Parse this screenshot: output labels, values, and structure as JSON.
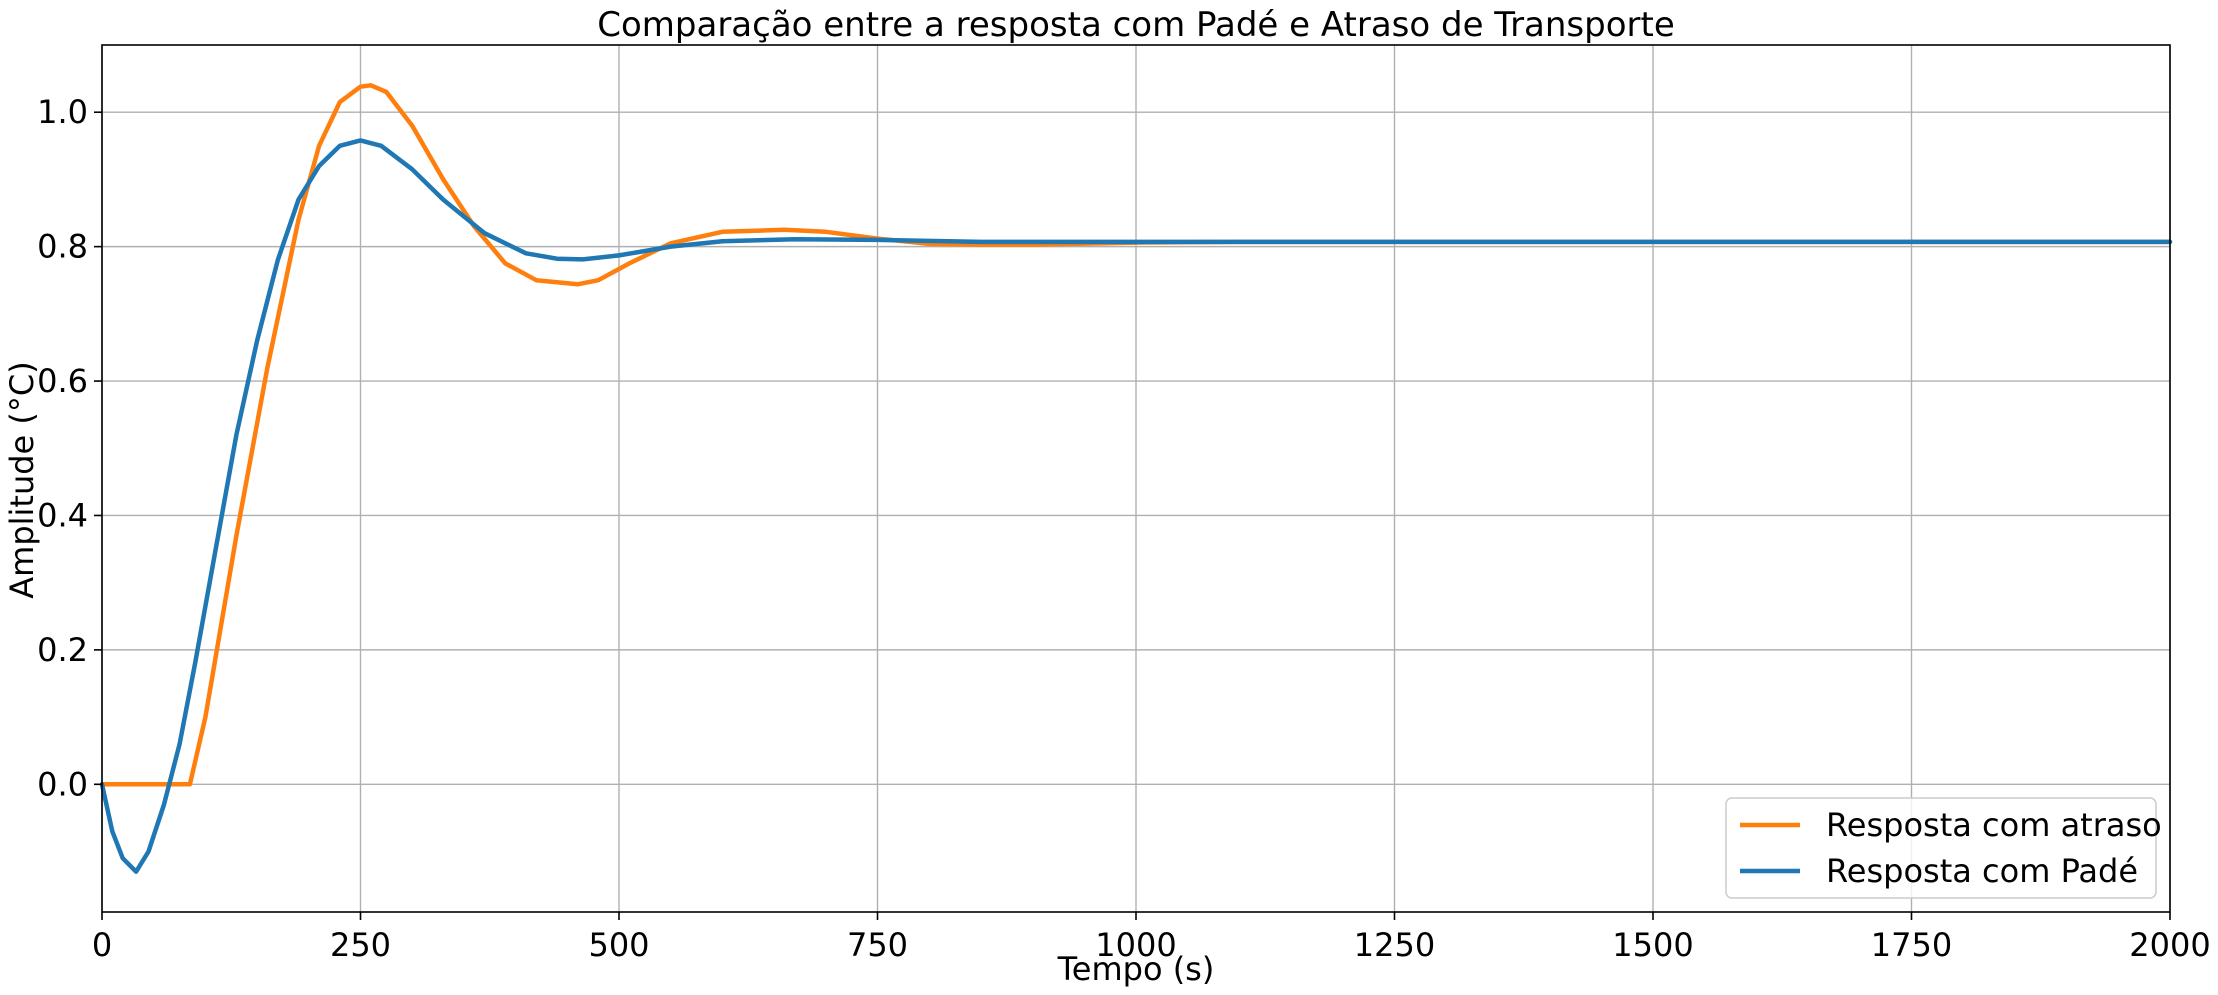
{
  "chart_data": {
    "type": "line",
    "title": "Comparação entre a resposta com Padé e Atraso de Transporte",
    "xlabel": "Tempo (s)",
    "ylabel": "Amplitude (°C)",
    "xlim": [
      0,
      2000
    ],
    "ylim": [
      -0.19,
      1.1
    ],
    "xticks": [
      0,
      250,
      500,
      750,
      1000,
      1250,
      1500,
      1750,
      2000
    ],
    "xtick_labels": [
      "0",
      "250",
      "500",
      "750",
      "1000",
      "1250",
      "1500",
      "1750",
      "2000"
    ],
    "yticks": [
      0.0,
      0.2,
      0.4,
      0.6,
      0.8,
      1.0
    ],
    "ytick_labels": [
      "0.0",
      "0.2",
      "0.4",
      "0.6",
      "0.8",
      "1.0"
    ],
    "grid": true,
    "legend_position": "bottom-right",
    "series": [
      {
        "name": "Resposta com atraso",
        "color": "#ff7f0e",
        "x": [
          0,
          85,
          100,
          130,
          160,
          190,
          210,
          230,
          250,
          260,
          275,
          300,
          330,
          360,
          390,
          420,
          460,
          480,
          510,
          550,
          600,
          660,
          700,
          750,
          800,
          850,
          900,
          1000,
          1100,
          1500,
          2000
        ],
        "y": [
          0.0,
          0.0,
          0.1,
          0.37,
          0.62,
          0.84,
          0.95,
          1.015,
          1.038,
          1.04,
          1.03,
          0.98,
          0.9,
          0.83,
          0.775,
          0.75,
          0.744,
          0.75,
          0.775,
          0.805,
          0.822,
          0.825,
          0.822,
          0.812,
          0.804,
          0.803,
          0.803,
          0.806,
          0.807,
          0.807,
          0.807
        ]
      },
      {
        "name": "Resposta com Padé",
        "color": "#1f77b4",
        "x": [
          0,
          10,
          20,
          33,
          45,
          60,
          75,
          90,
          110,
          130,
          150,
          170,
          190,
          210,
          230,
          250,
          270,
          300,
          330,
          370,
          410,
          440,
          465,
          500,
          550,
          600,
          670,
          750,
          850,
          1000,
          1500,
          2000
        ],
        "y": [
          0.0,
          -0.07,
          -0.11,
          -0.13,
          -0.1,
          -0.03,
          0.06,
          0.18,
          0.35,
          0.52,
          0.66,
          0.78,
          0.87,
          0.92,
          0.95,
          0.958,
          0.95,
          0.915,
          0.87,
          0.82,
          0.79,
          0.782,
          0.781,
          0.787,
          0.8,
          0.808,
          0.811,
          0.81,
          0.807,
          0.807,
          0.807,
          0.807
        ]
      }
    ]
  }
}
